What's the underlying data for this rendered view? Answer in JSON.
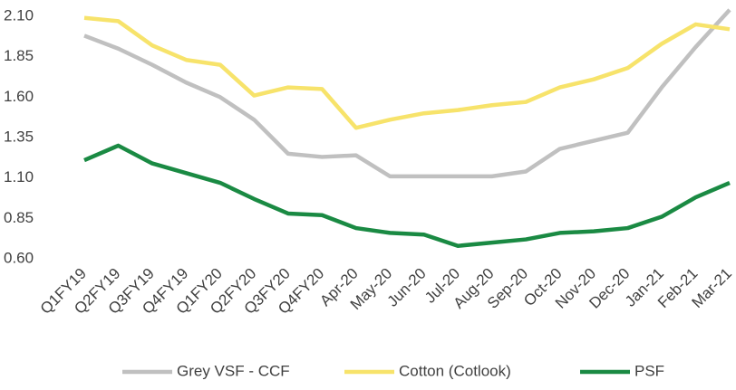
{
  "chart_data": {
    "type": "line",
    "categories": [
      "Q1FY19",
      "Q2FY19",
      "Q3FY19",
      "Q4FY19",
      "Q1FY20",
      "Q2FY20",
      "Q3FY20",
      "Q4FY20",
      "Apr-20",
      "May-20",
      "Jun-20",
      "Jul-20",
      "Aug-20",
      "Sep-20",
      "Oct-20",
      "Nov-20",
      "Dec-20",
      "Jan-21",
      "Feb-21",
      "Mar-21"
    ],
    "series": [
      {
        "name": "Grey VSF - CCF",
        "color": "#c0c0c0",
        "values": [
          1.98,
          1.9,
          1.8,
          1.69,
          1.6,
          1.46,
          1.25,
          1.23,
          1.24,
          1.11,
          1.11,
          1.11,
          1.11,
          1.14,
          1.28,
          1.33,
          1.38,
          1.66,
          1.91,
          2.14
        ]
      },
      {
        "name": "Cotton (Cotlook)",
        "color": "#f7e36b",
        "values": [
          2.09,
          2.07,
          1.92,
          1.83,
          1.8,
          1.61,
          1.66,
          1.65,
          1.41,
          1.46,
          1.5,
          1.52,
          1.55,
          1.57,
          1.66,
          1.71,
          1.78,
          1.93,
          2.05,
          2.02
        ]
      },
      {
        "name": "PSF",
        "color": "#1a8a43",
        "values": [
          1.21,
          1.3,
          1.19,
          1.13,
          1.07,
          0.97,
          0.88,
          0.87,
          0.79,
          0.76,
          0.75,
          0.68,
          0.7,
          0.72,
          0.76,
          0.77,
          0.79,
          0.86,
          0.98,
          1.07
        ]
      }
    ],
    "ylim": [
      0.6,
      2.1
    ],
    "yticks": [
      {
        "value": 0.6,
        "label": "0.60"
      },
      0.85,
      {
        "value": 1.1,
        "label": "1.10"
      },
      1.35,
      {
        "value": 1.6,
        "label": "1.60"
      },
      1.85,
      {
        "value": 2.1,
        "label": "2.10"
      }
    ],
    "legend": "bottom"
  }
}
